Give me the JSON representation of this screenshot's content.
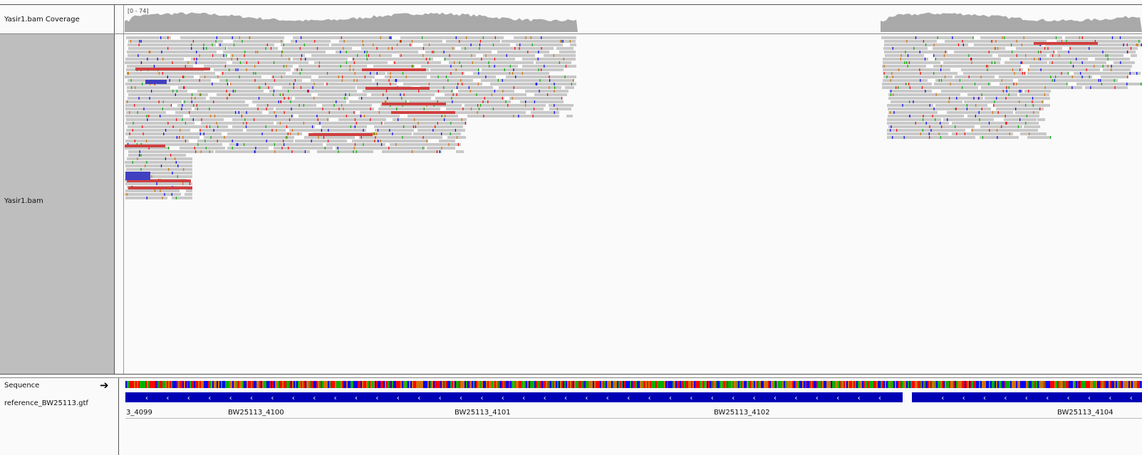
{
  "tracks": {
    "coverage_label": "Yasir1.bam Coverage",
    "coverage_range": "[0 - 74]",
    "alignment_label": "Yasir1.bam",
    "sequence_label": "Sequence",
    "annotation_label": "reference_BW25113.gtf"
  },
  "genes": [
    {
      "label": "3_4099"
    },
    {
      "label": "BW25113_4100"
    },
    {
      "label": "BW25113_4101"
    },
    {
      "label": "BW25113_4102"
    },
    {
      "label": "BW25113_4104"
    }
  ],
  "colors": {
    "coverage": "#a9a9a9",
    "read": "#c8c8c8",
    "read_panel_bg": "#bebebe",
    "insert_large": "#d04040",
    "insert_small": "#4040c0",
    "gene": "#0000b4",
    "mismatch_A": "#00b000",
    "mismatch_C": "#0000ff",
    "mismatch_G": "#d17105",
    "mismatch_T": "#ff0000"
  },
  "icons": {
    "strand_arrow": "right-arrow-icon"
  }
}
